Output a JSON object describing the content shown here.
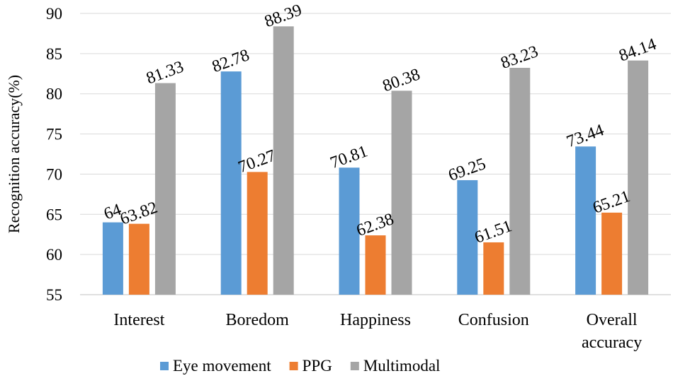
{
  "chart_data": {
    "type": "bar",
    "ylabel": "Recognition accuracy(%)",
    "ylim": [
      55,
      90
    ],
    "yticks": [
      55,
      60,
      65,
      70,
      75,
      80,
      85,
      90
    ],
    "grid": true,
    "legend_position": "bottom",
    "categories": [
      [
        "Interest"
      ],
      [
        "Boredom"
      ],
      [
        "Happiness"
      ],
      [
        "Confusion"
      ],
      [
        "Overall",
        "accuracy"
      ]
    ],
    "series": [
      {
        "name": "Eye movement",
        "color": "#5b9bd5",
        "values": [
          64,
          82.78,
          70.81,
          69.25,
          73.44
        ]
      },
      {
        "name": "PPG",
        "color": "#ed7d31",
        "values": [
          63.82,
          70.27,
          62.38,
          61.51,
          65.21
        ]
      },
      {
        "name": "Multimodal",
        "color": "#a5a5a5",
        "values": [
          81.33,
          88.39,
          80.38,
          83.23,
          84.14
        ]
      }
    ]
  }
}
